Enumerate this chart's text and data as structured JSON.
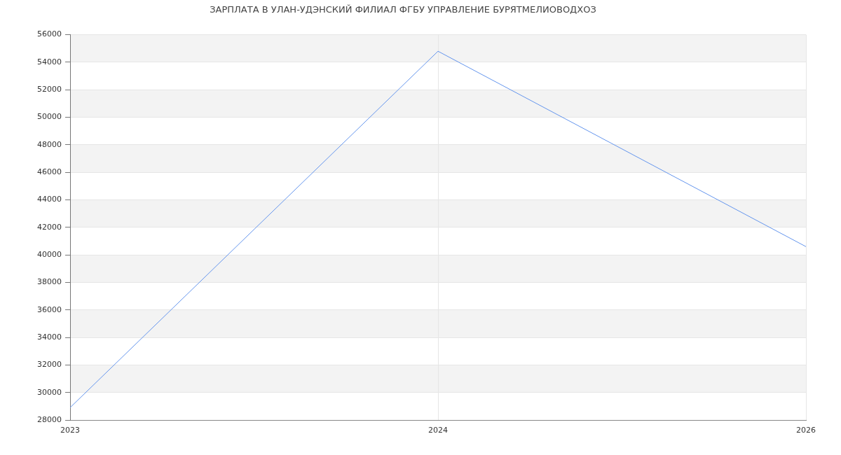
{
  "chart_data": {
    "type": "line",
    "title": "ЗАРПЛАТА В УЛАН-УДЭНСКИЙ ФИЛИАЛ ФГБУ УПРАВЛЕНИЕ БУРЯТМЕЛИОВОДХОЗ",
    "categories": [
      "2023",
      "2024",
      "2026"
    ],
    "series": [
      {
        "color": "#6495ed",
        "values": [
          28900,
          54800,
          40600
        ]
      }
    ],
    "ylim": [
      28000,
      56000
    ],
    "yticks": [
      28000,
      30000,
      32000,
      34000,
      36000,
      38000,
      40000,
      42000,
      44000,
      46000,
      48000,
      50000,
      52000,
      54000,
      56000
    ],
    "grid": true
  }
}
